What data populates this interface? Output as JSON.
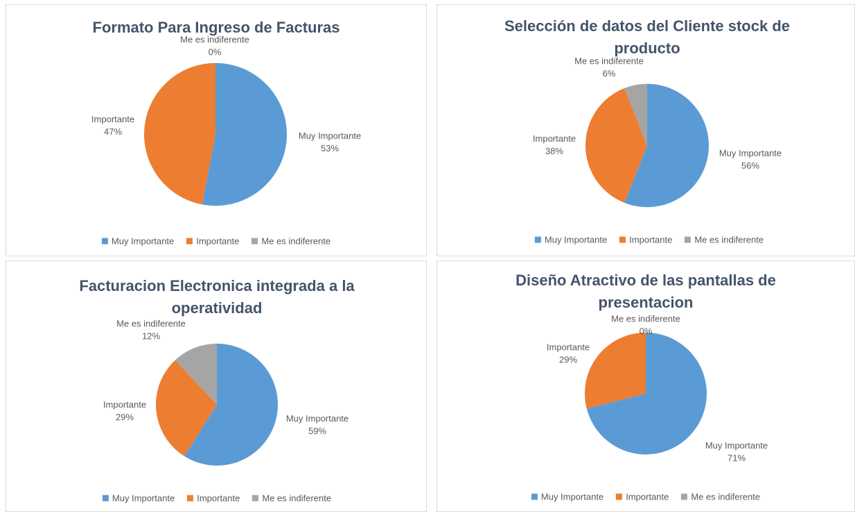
{
  "chart_data": [
    {
      "type": "pie",
      "title": "Formato Para Ingreso de Facturas",
      "categories": [
        "Muy Importante",
        "Importante",
        "Me es indiferente"
      ],
      "values": [
        53,
        47,
        0
      ],
      "value_labels": [
        "53%",
        "47%",
        "0%"
      ],
      "colors": [
        "#5b9bd5",
        "#ed7d31",
        "#a5a5a5"
      ],
      "legend": "bottom"
    },
    {
      "type": "pie",
      "title": "Selección de datos del Cliente stock de producto",
      "categories": [
        "Muy Importante",
        "Importante",
        "Me es indiferente"
      ],
      "values": [
        56,
        38,
        6
      ],
      "value_labels": [
        "56%",
        "38%",
        "6%"
      ],
      "colors": [
        "#5b9bd5",
        "#ed7d31",
        "#a5a5a5"
      ],
      "legend": "bottom"
    },
    {
      "type": "pie",
      "title": "Facturacion Electronica integrada a la operatividad",
      "categories": [
        "Muy Importante",
        "Importante",
        "Me es indiferente"
      ],
      "values": [
        59,
        29,
        12
      ],
      "value_labels": [
        "59%",
        "29%",
        "12%"
      ],
      "colors": [
        "#5b9bd5",
        "#ed7d31",
        "#a5a5a5"
      ],
      "legend": "bottom"
    },
    {
      "type": "pie",
      "title": "Diseño Atractivo de las pantallas de presentacion",
      "categories": [
        "Muy Importante",
        "Importante",
        "Me es indiferente"
      ],
      "values": [
        71,
        29,
        0
      ],
      "value_labels": [
        "71%",
        "29%",
        "0%"
      ],
      "colors": [
        "#5b9bd5",
        "#ed7d31",
        "#a5a5a5"
      ],
      "legend": "bottom"
    }
  ]
}
